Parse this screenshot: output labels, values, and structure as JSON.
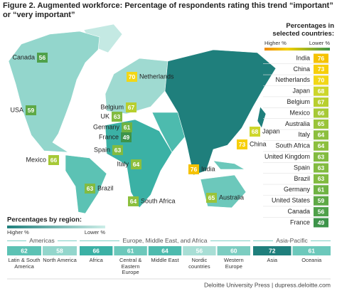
{
  "title": "Figure 2. Augmented workforce: Percentage of respondents rating this trend “important” or “very important”",
  "map_labels": [
    {
      "name": "Canada",
      "value": 56,
      "color": "#4fa14a"
    },
    {
      "name": "USA",
      "value": 59,
      "color": "#5ea946"
    },
    {
      "name": "Mexico",
      "value": 66,
      "color": "#a6c936"
    },
    {
      "name": "Brazil",
      "value": 63,
      "color": "#82bb40"
    },
    {
      "name": "Netherlands",
      "value": 70,
      "color": "#f2d716"
    },
    {
      "name": "Belgium",
      "value": 67,
      "color": "#b8cf2e"
    },
    {
      "name": "UK",
      "value": 63,
      "color": "#82bb40"
    },
    {
      "name": "Germany",
      "value": 61,
      "color": "#6fb343"
    },
    {
      "name": "France",
      "value": 49,
      "color": "#3d944a"
    },
    {
      "name": "Spain",
      "value": 63,
      "color": "#82bb40"
    },
    {
      "name": "Italy",
      "value": 64,
      "color": "#8cbf3e"
    },
    {
      "name": "South Africa",
      "value": 64,
      "color": "#8cbf3e"
    },
    {
      "name": "India",
      "value": 76,
      "color": "#f5c200"
    },
    {
      "name": "China",
      "value": 73,
      "color": "#f7cf0a"
    },
    {
      "name": "Japan",
      "value": 68,
      "color": "#cdd62a"
    },
    {
      "name": "Australia",
      "value": 65,
      "color": "#9ac43a"
    }
  ],
  "selected_countries": {
    "title": "Percentages in selected countries:",
    "legend": {
      "high": "Higher %",
      "low": "Lower %"
    },
    "items": [
      {
        "name": "India",
        "value": 76,
        "color": "#f5c200"
      },
      {
        "name": "China",
        "value": 73,
        "color": "#f7cf0a"
      },
      {
        "name": "Netherlands",
        "value": 70,
        "color": "#f2d716"
      },
      {
        "name": "Japan",
        "value": 68,
        "color": "#cdd62a"
      },
      {
        "name": "Belgium",
        "value": 67,
        "color": "#b8cf2e"
      },
      {
        "name": "Mexico",
        "value": 66,
        "color": "#a6c936"
      },
      {
        "name": "Australia",
        "value": 65,
        "color": "#9ac43a"
      },
      {
        "name": "Italy",
        "value": 64,
        "color": "#8cbf3e"
      },
      {
        "name": "South Africa",
        "value": 64,
        "color": "#8cbf3e"
      },
      {
        "name": "United Kingdom",
        "value": 63,
        "color": "#82bb40"
      },
      {
        "name": "Spain",
        "value": 63,
        "color": "#82bb40"
      },
      {
        "name": "Brazil",
        "value": 63,
        "color": "#82bb40"
      },
      {
        "name": "Germany",
        "value": 61,
        "color": "#6fb343"
      },
      {
        "name": "United States",
        "value": 59,
        "color": "#5ea946"
      },
      {
        "name": "Canada",
        "value": 56,
        "color": "#4fa14a"
      },
      {
        "name": "France",
        "value": 49,
        "color": "#3d944a"
      }
    ]
  },
  "regions": {
    "title": "Percentages by region:",
    "legend": {
      "high": "Higher %",
      "low": "Lower %"
    },
    "groups": [
      {
        "name": "Americas",
        "items": [
          {
            "name": "Latin & South America",
            "value": 62,
            "color": "#5cc2b4"
          },
          {
            "name": "North America",
            "value": 58,
            "color": "#93d6cc"
          }
        ]
      },
      {
        "name": "Europe, Middle East, and Africa",
        "items": [
          {
            "name": "Africa",
            "value": 66,
            "color": "#3bb1a5"
          },
          {
            "name": "Central & Eastern Europe",
            "value": 61,
            "color": "#6cc8bb"
          },
          {
            "name": "Middle East",
            "value": 64,
            "color": "#4dbbae"
          },
          {
            "name": "Nordic countries",
            "value": 56,
            "color": "#a8ded5"
          },
          {
            "name": "Western Europe",
            "value": 60,
            "color": "#7ccdc1"
          }
        ]
      },
      {
        "name": "Asia-Pacific",
        "items": [
          {
            "name": "Asia",
            "value": 72,
            "color": "#1f7f7c"
          },
          {
            "name": "Oceania",
            "value": 61,
            "color": "#6cc8bb"
          }
        ]
      }
    ]
  },
  "footer": "Deloitte University Press | dupress.deloitte.com"
}
